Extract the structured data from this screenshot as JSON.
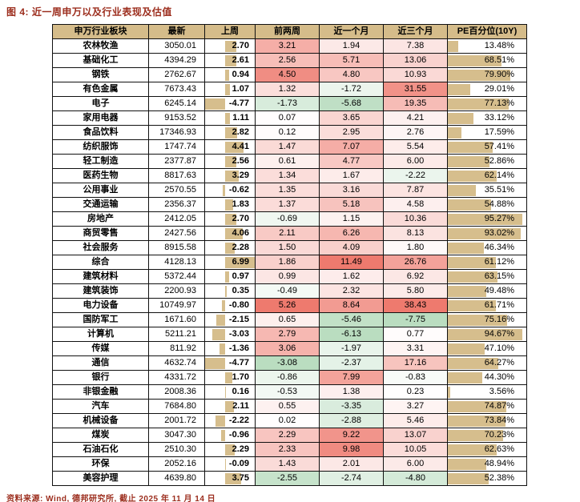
{
  "title": "图 4: 近一周申万以及行业表现及估值",
  "footer": "资料来源: Wind, 德邦研究所, 截止 2025 年 11 月 14 日",
  "colors": {
    "title_accent": "#9C2D1D",
    "header_bg": "#D5BC8A",
    "bar_fill": "#D6BE8D",
    "positive_max": "#EE7A6E",
    "negative_max": "#BADDC0"
  },
  "chart_data": {
    "type": "table",
    "columns": [
      "申万行业板块",
      "最新",
      "上周",
      "前两周",
      "近一个月",
      "近三个月",
      "PE百分位(10Y)"
    ],
    "rows": [
      [
        "农林牧渔",
        "3050.01",
        "2.70",
        "3.21",
        "1.94",
        "7.38",
        "13.48%"
      ],
      [
        "基础化工",
        "4394.29",
        "2.61",
        "2.56",
        "5.71",
        "13.06",
        "68.51%"
      ],
      [
        "钢铁",
        "2762.67",
        "0.94",
        "4.50",
        "4.80",
        "10.93",
        "79.90%"
      ],
      [
        "有色金属",
        "7673.43",
        "1.07",
        "1.32",
        "-1.72",
        "31.55",
        "29.01%"
      ],
      [
        "电子",
        "6245.14",
        "-4.77",
        "-1.73",
        "-5.68",
        "19.35",
        "77.13%"
      ],
      [
        "家用电器",
        "9153.52",
        "1.11",
        "0.07",
        "3.65",
        "4.21",
        "33.12%"
      ],
      [
        "食品饮料",
        "17346.93",
        "2.82",
        "0.12",
        "2.95",
        "2.76",
        "17.59%"
      ],
      [
        "纺织服饰",
        "1747.74",
        "4.41",
        "1.47",
        "7.07",
        "5.54",
        "57.41%"
      ],
      [
        "轻工制造",
        "2377.87",
        "2.56",
        "0.61",
        "4.77",
        "6.00",
        "52.86%"
      ],
      [
        "医药生物",
        "8817.63",
        "3.29",
        "1.34",
        "1.67",
        "-2.22",
        "62.14%"
      ],
      [
        "公用事业",
        "2570.55",
        "-0.62",
        "1.35",
        "3.16",
        "7.87",
        "35.51%"
      ],
      [
        "交通运输",
        "2356.37",
        "1.83",
        "1.37",
        "5.18",
        "4.58",
        "54.88%"
      ],
      [
        "房地产",
        "2412.05",
        "2.70",
        "-0.69",
        "1.15",
        "10.36",
        "95.27%"
      ],
      [
        "商贸零售",
        "2427.56",
        "4.06",
        "2.11",
        "6.26",
        "8.13",
        "93.02%"
      ],
      [
        "社会服务",
        "8915.58",
        "2.28",
        "1.50",
        "4.09",
        "1.80",
        "46.34%"
      ],
      [
        "综合",
        "4128.13",
        "6.99",
        "1.86",
        "11.49",
        "26.76",
        "61.12%"
      ],
      [
        "建筑材料",
        "5372.44",
        "0.97",
        "0.99",
        "1.62",
        "6.92",
        "63.15%"
      ],
      [
        "建筑装饰",
        "2200.93",
        "0.35",
        "-0.49",
        "2.32",
        "5.80",
        "49.48%"
      ],
      [
        "电力设备",
        "10749.97",
        "-0.80",
        "5.26",
        "8.64",
        "38.43",
        "61.71%"
      ],
      [
        "国防军工",
        "1671.60",
        "-2.15",
        "0.65",
        "-5.46",
        "-7.75",
        "75.16%"
      ],
      [
        "计算机",
        "5211.21",
        "-3.03",
        "2.79",
        "-6.13",
        "0.77",
        "94.67%"
      ],
      [
        "传媒",
        "811.92",
        "-1.36",
        "3.06",
        "-1.97",
        "3.31",
        "47.10%"
      ],
      [
        "通信",
        "4632.74",
        "-4.77",
        "-3.08",
        "-2.37",
        "17.16",
        "64.27%"
      ],
      [
        "银行",
        "4331.72",
        "1.70",
        "-0.86",
        "7.99",
        "-0.83",
        "44.30%"
      ],
      [
        "非银金融",
        "2008.36",
        "0.16",
        "-0.53",
        "1.38",
        "0.23",
        "3.56%"
      ],
      [
        "汽车",
        "7684.80",
        "2.11",
        "0.55",
        "-3.35",
        "3.27",
        "74.87%"
      ],
      [
        "机械设备",
        "2001.72",
        "-2.22",
        "0.02",
        "-2.88",
        "5.46",
        "73.84%"
      ],
      [
        "煤炭",
        "3047.30",
        "-0.96",
        "2.29",
        "9.22",
        "13.07",
        "70.23%"
      ],
      [
        "石油石化",
        "2510.30",
        "2.29",
        "2.33",
        "9.98",
        "10.05",
        "62.63%"
      ],
      [
        "环保",
        "2052.16",
        "-0.09",
        "1.43",
        "2.01",
        "6.00",
        "48.94%"
      ],
      [
        "美容护理",
        "4639.80",
        "3.75",
        "-2.55",
        "-2.74",
        "-4.80",
        "52.38%"
      ]
    ]
  }
}
